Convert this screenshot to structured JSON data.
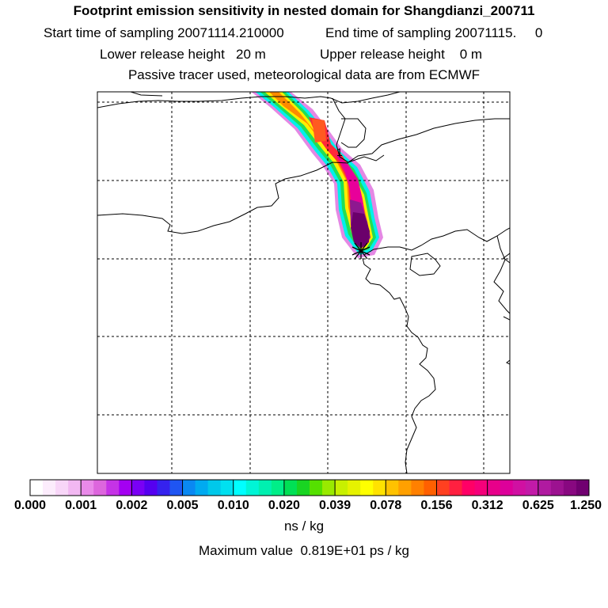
{
  "header": {
    "title": "Footprint emission sensitivity in nested domain for Shangdianzi_200711",
    "start": "Start time of sampling 20071114.210000",
    "end": "End time of sampling 20071115.     0",
    "lower": "Lower release height   20 m",
    "upper": "Upper release height    0 m",
    "note": "Passive tracer used, meteorological data are from ECMWF"
  },
  "map": {
    "contour_label": "1",
    "release_marker": "star"
  },
  "colorbar": {
    "tick_labels": [
      "0.000",
      "0.001",
      "0.002",
      "0.005",
      "0.010",
      "0.020",
      "0.039",
      "0.078",
      "0.156",
      "0.312",
      "0.625",
      "1.250"
    ],
    "colors": [
      "#ffffff",
      "#fcecfc",
      "#f8d6f8",
      "#f2b8f2",
      "#e98ae9",
      "#dd66dd",
      "#c533e6",
      "#a400f2",
      "#7a00f5",
      "#5500f0",
      "#3522ee",
      "#1f55f2",
      "#0a88f2",
      "#00aaf0",
      "#00c8ea",
      "#00e0f0",
      "#00ffff",
      "#00f5d6",
      "#00f0b0",
      "#00ee88",
      "#00e055",
      "#19d422",
      "#55e000",
      "#99ea00",
      "#c8f000",
      "#e6f200",
      "#ffff00",
      "#ffe200",
      "#ffc200",
      "#ffa000",
      "#ff8000",
      "#ff6000",
      "#ff4020",
      "#ff2040",
      "#ff0066",
      "#f5007a",
      "#e8008a",
      "#dd009a",
      "#d010a2",
      "#c21aa8",
      "#b01aa0",
      "#9c1290",
      "#880880",
      "#700070"
    ],
    "units": "ns / kg",
    "max_value": "Maximum value  0.819E+01 ps / kg"
  }
}
